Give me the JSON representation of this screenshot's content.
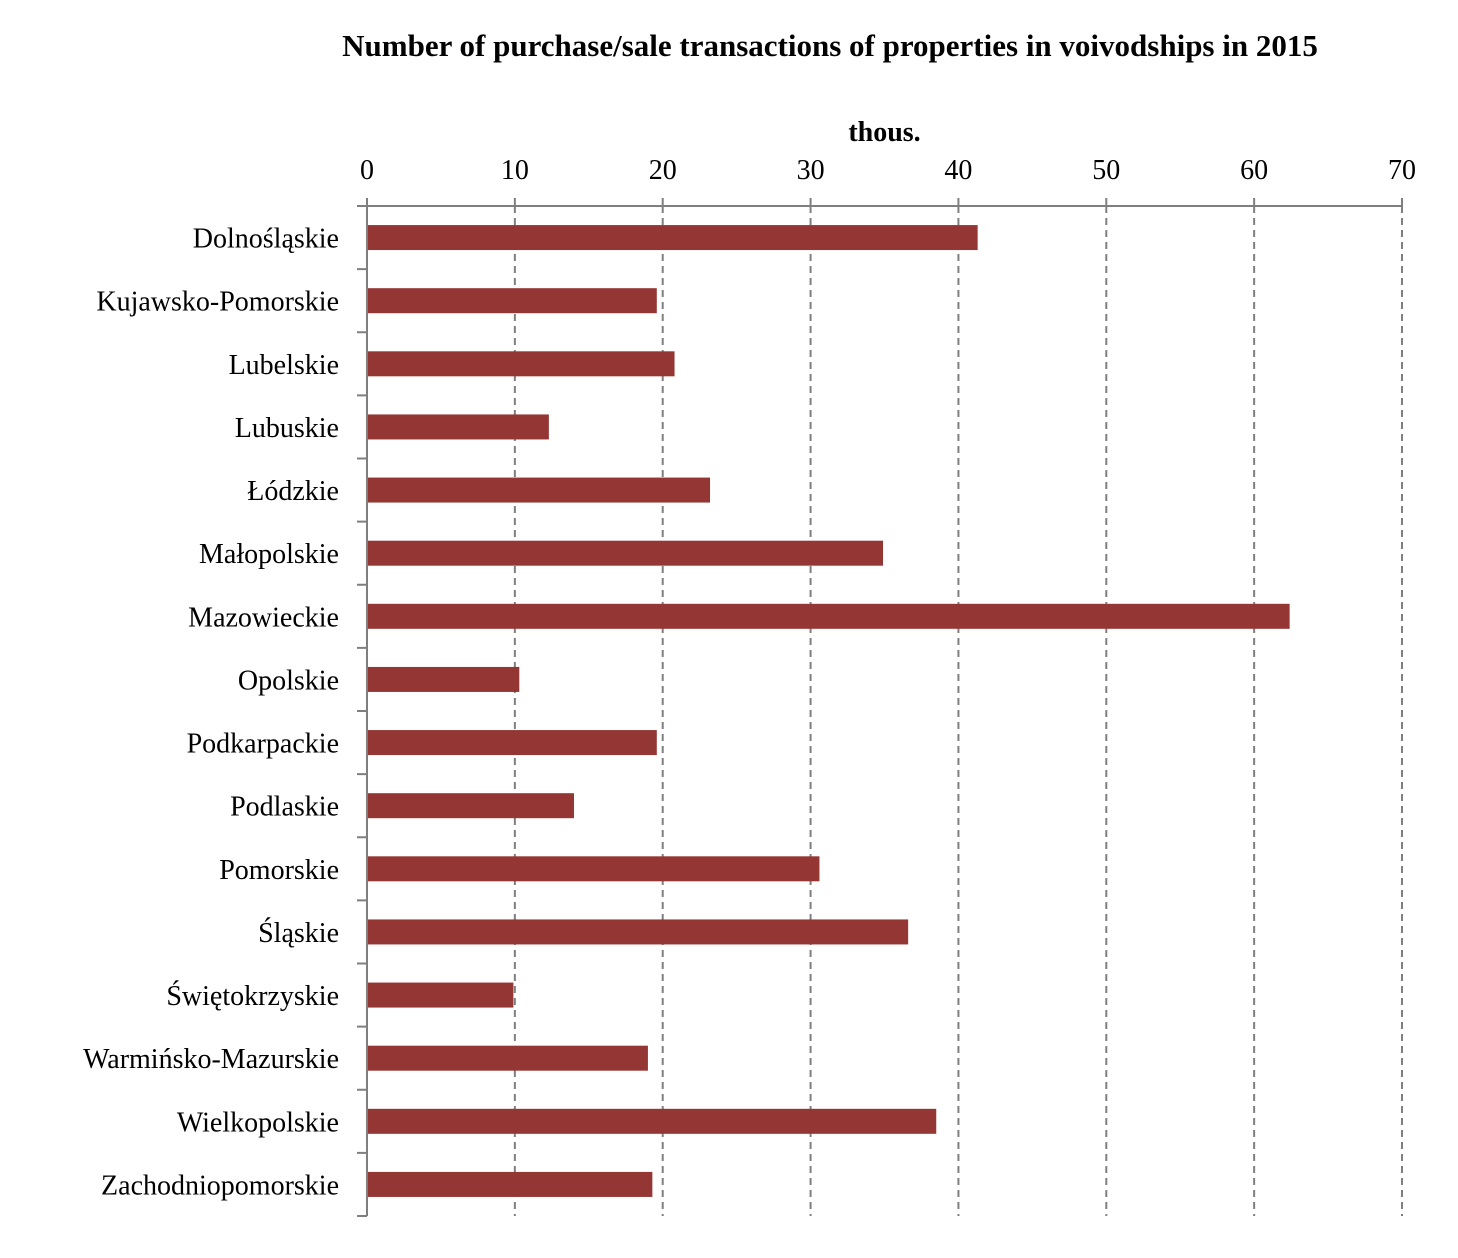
{
  "chart_data": {
    "type": "bar",
    "orientation": "horizontal",
    "title": "Number of purchase/sale transactions of properties in voivodships in 2015",
    "xlabel": "thous.",
    "ylabel": "",
    "xlim": [
      0,
      70
    ],
    "xticks": [
      0,
      10,
      20,
      30,
      40,
      50,
      60,
      70
    ],
    "axis_position": "top",
    "grid": "vertical dashed",
    "bar_color": "#943634",
    "categories": [
      "Dolnośląskie",
      "Kujawsko-Pomorskie",
      "Lubelskie",
      "Lubuskie",
      "Łódzkie",
      "Małopolskie",
      "Mazowieckie",
      "Opolskie",
      "Podkarpackie",
      "Podlaskie",
      "Pomorskie",
      "Śląskie",
      "Świętokrzyskie",
      "Warmińsko-Mazurskie",
      "Wielkopolskie",
      "Zachodniopomorskie"
    ],
    "values": [
      41.3,
      19.6,
      20.8,
      12.3,
      23.2,
      34.9,
      62.4,
      10.3,
      19.6,
      14.0,
      30.6,
      36.6,
      9.9,
      19.0,
      38.5,
      19.3
    ]
  }
}
